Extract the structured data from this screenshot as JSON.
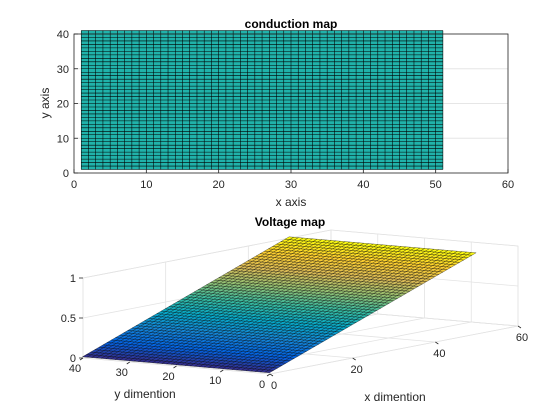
{
  "chart_data": [
    {
      "type": "heatmap",
      "plot": "surface (flat view)",
      "title": "conduction map",
      "xlabel": "x axis",
      "ylabel": "y axis",
      "xlim": [
        0,
        60
      ],
      "ylim": [
        0,
        40
      ],
      "xticks": [
        0,
        10,
        20,
        30,
        40,
        50,
        60
      ],
      "yticks": [
        0,
        10,
        20,
        30,
        40
      ],
      "grid": true,
      "mesh_x_range": [
        1,
        51
      ],
      "mesh_y_range": [
        1,
        41
      ],
      "values": "uniform",
      "surface_color": "#20B2AA",
      "edge_color": "#000000"
    },
    {
      "type": "surface",
      "title": "Voltage map",
      "xlabel": "x dimention",
      "ylabel": "y dimention",
      "zlabel": "",
      "xlim": [
        0,
        60
      ],
      "ylim": [
        0,
        40
      ],
      "zlim": [
        0,
        1
      ],
      "xticks": [
        0,
        20,
        40,
        60
      ],
      "yticks": [
        0,
        10,
        20,
        30,
        40
      ],
      "zticks": [
        "0",
        "0.5",
        "1"
      ],
      "grid": true,
      "mesh_x_range": [
        1,
        51
      ],
      "mesh_y_range": [
        1,
        41
      ],
      "z_at_x_min": 0,
      "z_at_x_max": 1,
      "z_variation": "linear along x, constant along y",
      "colormap": "parula"
    }
  ]
}
